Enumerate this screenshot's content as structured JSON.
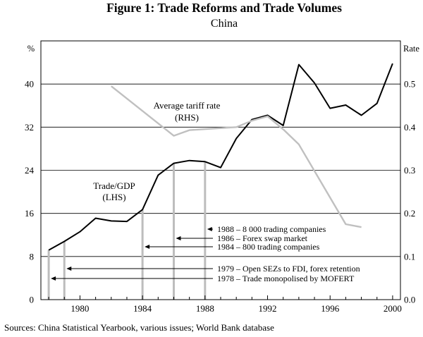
{
  "chart_data": {
    "type": "line",
    "title": "Figure 1: Trade Reforms and Trade Volumes",
    "subtitle": "China",
    "left_axis": {
      "unit_label": "%",
      "range": [
        0,
        48
      ],
      "ticks": [
        0,
        8,
        16,
        24,
        32,
        40
      ]
    },
    "right_axis": {
      "unit_label": "Rate",
      "range": [
        0.0,
        0.6
      ],
      "ticks": [
        "0.0",
        "0.1",
        "0.2",
        "0.3",
        "0.4",
        "0.5"
      ]
    },
    "x_axis": {
      "range": [
        1977.5,
        2000.5
      ],
      "ticks": [
        1980,
        1984,
        1988,
        1992,
        1996,
        2000
      ],
      "minor_ticks_every": 1
    },
    "grid": true,
    "series": [
      {
        "name": "Trade/GDP",
        "name_line1": "Trade/GDP",
        "name_line2": "(LHS)",
        "axis": "left",
        "color": "#000000",
        "x": [
          1978,
          1979,
          1980,
          1981,
          1982,
          1983,
          1984,
          1985,
          1986,
          1987,
          1988,
          1989,
          1990,
          1991,
          1992,
          1993,
          1994,
          1995,
          1996,
          1997,
          1998,
          1999,
          2000
        ],
        "values": [
          9.2,
          10.8,
          12.6,
          15.1,
          14.6,
          14.5,
          16.7,
          23.1,
          25.3,
          25.8,
          25.6,
          24.5,
          29.9,
          33.4,
          34.2,
          32.3,
          43.6,
          40.2,
          35.5,
          36.1,
          34.2,
          36.4,
          43.8
        ]
      },
      {
        "name": "Average tariff rate",
        "name_line1": "Average tariff rate",
        "name_line2": "(RHS)",
        "axis": "right",
        "color": "#c0c0c0",
        "x": [
          1982,
          1986,
          1987,
          1990,
          1991,
          1992,
          1993,
          1994,
          1997,
          1998
        ],
        "values": [
          0.495,
          0.38,
          0.393,
          0.4,
          0.415,
          0.425,
          0.395,
          0.36,
          0.175,
          0.168
        ]
      }
    ],
    "annotations": [
      {
        "year": 1978,
        "text": "1978 – Trade monopolised by MOFERT"
      },
      {
        "year": 1979,
        "text": "1979 – Open SEZs to FDI, forex retention"
      },
      {
        "year": 1984,
        "text": "1984 – 800 trading companies"
      },
      {
        "year": 1986,
        "text": "1986 – Forex swap market"
      },
      {
        "year": 1988,
        "text": "1988 – 8 000 trading companies"
      }
    ],
    "source": "Sources:    China Statistical Yearbook, various issues; World Bank database"
  }
}
